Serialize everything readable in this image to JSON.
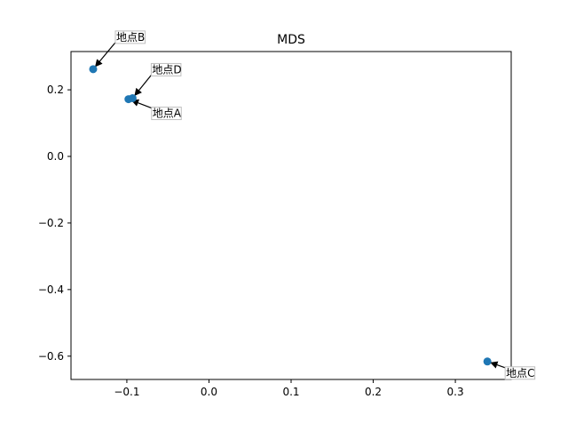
{
  "chart_data": {
    "type": "scatter",
    "title": "MDS",
    "xlabel": "",
    "ylabel": "",
    "xlim": [
      -0.168,
      0.368
    ],
    "ylim": [
      -0.67,
      0.315
    ],
    "xticks": [
      -0.1,
      0.0,
      0.1,
      0.2,
      0.3
    ],
    "xtick_labels": [
      "−0.1",
      "0.0",
      "0.1",
      "0.2",
      "0.3"
    ],
    "yticks": [
      -0.6,
      -0.4,
      -0.2,
      0.0,
      0.2
    ],
    "ytick_labels": [
      "−0.6",
      "−0.4",
      "−0.2",
      "0.0",
      "0.2"
    ],
    "grid": false,
    "points": [
      {
        "label": "地点A",
        "x": -0.098,
        "y": 0.172
      },
      {
        "label": "地点B",
        "x": -0.141,
        "y": 0.262
      },
      {
        "label": "地点C",
        "x": 0.339,
        "y": -0.616
      },
      {
        "label": "地点D",
        "x": -0.093,
        "y": 0.175
      }
    ],
    "colors": {
      "marker": "#1f77b4",
      "axis": "#000000",
      "arrow": "#000000",
      "label_box_edge": "#bfbfbf"
    }
  }
}
